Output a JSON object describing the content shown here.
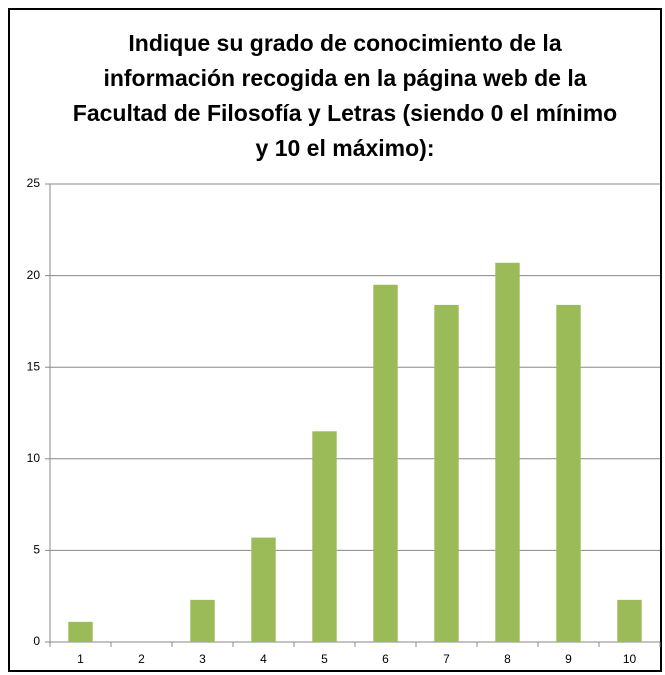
{
  "chart_data": {
    "type": "bar",
    "title": "Indique su grado de conocimiento de la información recogida en la página web de la Facultad de Filosofía y Letras (siendo 0 el mínimo y 10 el máximo):",
    "categories": [
      "1",
      "2",
      "3",
      "4",
      "5",
      "6",
      "7",
      "8",
      "9",
      "10"
    ],
    "values": [
      1.1,
      0,
      2.3,
      5.7,
      11.5,
      19.5,
      18.4,
      20.7,
      18.4,
      2.3
    ],
    "color": "#9bbb59",
    "ylim": [
      0,
      25
    ],
    "yticks": [
      0,
      5,
      10,
      15,
      20,
      25
    ],
    "grid": true
  }
}
